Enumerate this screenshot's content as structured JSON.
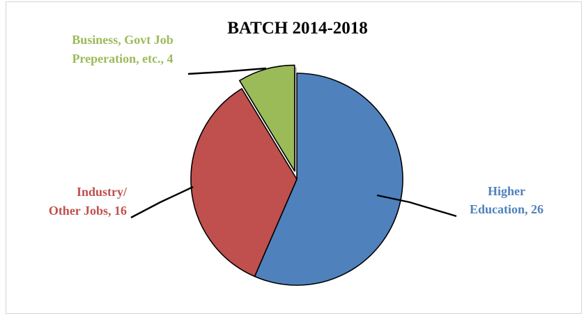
{
  "chart_data": {
    "type": "pie",
    "title": "BATCH 2014-2018",
    "slices": [
      {
        "name": "Higher Education",
        "value": 26,
        "color": "#4F81BD",
        "label_lines": [
          "Higher",
          "Education, 26"
        ],
        "exploded": false
      },
      {
        "name": "Industry/ Other Jobs",
        "value": 16,
        "color": "#C0504D",
        "label_lines": [
          "Industry/",
          "Other Jobs, 16"
        ],
        "exploded": false
      },
      {
        "name": "Business, Govt Job Preperation, etc.",
        "value": 4,
        "color": "#9BBB59",
        "label_lines": [
          "Business, Govt Job",
          "Preperation, etc., 4"
        ],
        "exploded": true
      }
    ],
    "label_colors": [
      "#4F81BD",
      "#C0504D",
      "#9BBB59"
    ],
    "legend": "none"
  }
}
